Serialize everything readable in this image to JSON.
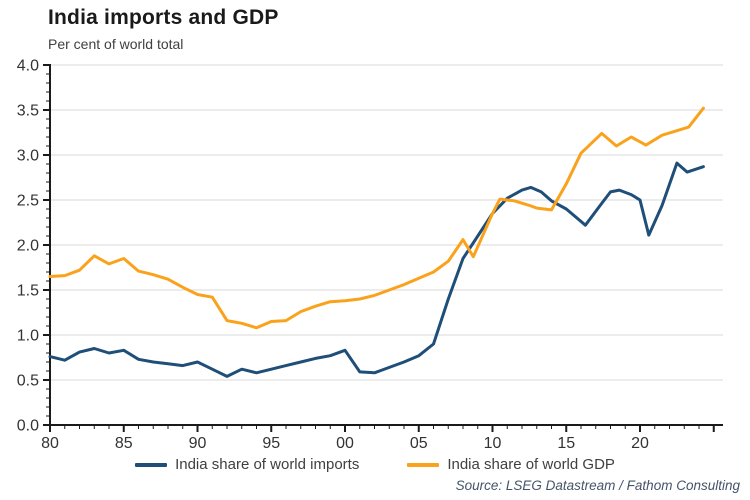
{
  "header": {
    "title": "India imports and GDP",
    "subtitle": "Per cent of world total"
  },
  "source": "Source: LSEG Datastream / Fathom Consulting",
  "colors": {
    "imports_line": "#1F4E79",
    "gdp_line": "#FAA21B",
    "gridline": "#D9D9D9",
    "axis": "#1a1a1a",
    "tick_label": "#333333",
    "background": "#FFFFFF"
  },
  "legend": [
    {
      "label": "India share of world imports",
      "color": "#1F4E79"
    },
    {
      "label": "India share of world GDP",
      "color": "#FAA21B"
    }
  ],
  "chart_data": {
    "type": "line",
    "title": "India imports and GDP",
    "subtitle": "Per cent of world total",
    "xlabel": "",
    "ylabel": "Per cent of world total",
    "grid": "horizontal",
    "legend_position": "bottom",
    "x_axis": {
      "range": [
        1980,
        2025.6
      ],
      "minor_tick_step": 1,
      "ticks": [
        {
          "value": 1980,
          "label": "80"
        },
        {
          "value": 1985,
          "label": "85"
        },
        {
          "value": 1990,
          "label": "90"
        },
        {
          "value": 1995,
          "label": "95"
        },
        {
          "value": 2000,
          "label": "00"
        },
        {
          "value": 2005,
          "label": "05"
        },
        {
          "value": 2010,
          "label": "10"
        },
        {
          "value": 2015,
          "label": "15"
        },
        {
          "value": 2020,
          "label": "20"
        }
      ]
    },
    "y_axis": {
      "range": [
        0,
        4
      ],
      "minor_tick_step": 0.1,
      "ticks": [
        {
          "value": 4.0,
          "label": "4.0"
        },
        {
          "value": 3.5,
          "label": "3.5"
        },
        {
          "value": 3.0,
          "label": "3.0"
        },
        {
          "value": 2.5,
          "label": "2.5"
        },
        {
          "value": 2.0,
          "label": "2.0"
        },
        {
          "value": 1.5,
          "label": "1.5"
        },
        {
          "value": 1.0,
          "label": "1.0"
        },
        {
          "value": 0.5,
          "label": "0.5"
        },
        {
          "value": 0.0,
          "label": "0.0"
        }
      ]
    },
    "series": [
      {
        "name": "India share of world imports",
        "color": "#1F4E79",
        "points": [
          [
            1980,
            0.76
          ],
          [
            1981,
            0.72
          ],
          [
            1982,
            0.81
          ],
          [
            1983,
            0.85
          ],
          [
            1984,
            0.8
          ],
          [
            1985,
            0.83
          ],
          [
            1986,
            0.73
          ],
          [
            1987,
            0.7
          ],
          [
            1988,
            0.68
          ],
          [
            1989,
            0.66
          ],
          [
            1990,
            0.7
          ],
          [
            1991,
            0.62
          ],
          [
            1992,
            0.54
          ],
          [
            1993,
            0.62
          ],
          [
            1994,
            0.58
          ],
          [
            1995,
            0.62
          ],
          [
            1996,
            0.66
          ],
          [
            1997,
            0.7
          ],
          [
            1998,
            0.74
          ],
          [
            1999,
            0.77
          ],
          [
            2000,
            0.83
          ],
          [
            2001,
            0.59
          ],
          [
            2002,
            0.58
          ],
          [
            2003,
            0.64
          ],
          [
            2004,
            0.7
          ],
          [
            2005,
            0.77
          ],
          [
            2006,
            0.9
          ],
          [
            2007,
            1.4
          ],
          [
            2008,
            1.85
          ],
          [
            2009,
            2.1
          ],
          [
            2010,
            2.35
          ],
          [
            2011,
            2.52
          ],
          [
            2012,
            2.61
          ],
          [
            2012.6,
            2.64
          ],
          [
            2013.3,
            2.59
          ],
          [
            2014,
            2.49
          ],
          [
            2015,
            2.4
          ],
          [
            2016.3,
            2.22
          ],
          [
            2017.3,
            2.44
          ],
          [
            2018,
            2.59
          ],
          [
            2018.6,
            2.61
          ],
          [
            2019.4,
            2.56
          ],
          [
            2020,
            2.5
          ],
          [
            2020.6,
            2.11
          ],
          [
            2021.5,
            2.44
          ],
          [
            2022.5,
            2.91
          ],
          [
            2023.2,
            2.81
          ],
          [
            2024.3,
            2.87
          ]
        ]
      },
      {
        "name": "India share of world GDP",
        "color": "#FAA21B",
        "points": [
          [
            1980,
            1.65
          ],
          [
            1981,
            1.66
          ],
          [
            1982,
            1.72
          ],
          [
            1983,
            1.88
          ],
          [
            1984,
            1.79
          ],
          [
            1985,
            1.85
          ],
          [
            1986,
            1.71
          ],
          [
            1987,
            1.67
          ],
          [
            1988,
            1.62
          ],
          [
            1989,
            1.53
          ],
          [
            1990,
            1.45
          ],
          [
            1991,
            1.42
          ],
          [
            1992,
            1.16
          ],
          [
            1993,
            1.13
          ],
          [
            1994,
            1.08
          ],
          [
            1995,
            1.15
          ],
          [
            1996,
            1.16
          ],
          [
            1997,
            1.26
          ],
          [
            1998,
            1.32
          ],
          [
            1999,
            1.37
          ],
          [
            2000,
            1.38
          ],
          [
            2001,
            1.4
          ],
          [
            2002,
            1.44
          ],
          [
            2003,
            1.5
          ],
          [
            2004,
            1.56
          ],
          [
            2005,
            1.63
          ],
          [
            2006,
            1.7
          ],
          [
            2007,
            1.82
          ],
          [
            2008,
            2.06
          ],
          [
            2008.7,
            1.87
          ],
          [
            2010,
            2.35
          ],
          [
            2010.5,
            2.51
          ],
          [
            2011.5,
            2.49
          ],
          [
            2012.5,
            2.44
          ],
          [
            2013,
            2.41
          ],
          [
            2014,
            2.39
          ],
          [
            2015,
            2.68
          ],
          [
            2016,
            3.02
          ],
          [
            2017.4,
            3.24
          ],
          [
            2018.4,
            3.1
          ],
          [
            2019.4,
            3.2
          ],
          [
            2020.4,
            3.11
          ],
          [
            2021.5,
            3.22
          ],
          [
            2022.5,
            3.27
          ],
          [
            2023.3,
            3.31
          ],
          [
            2024.3,
            3.52
          ]
        ]
      }
    ]
  }
}
